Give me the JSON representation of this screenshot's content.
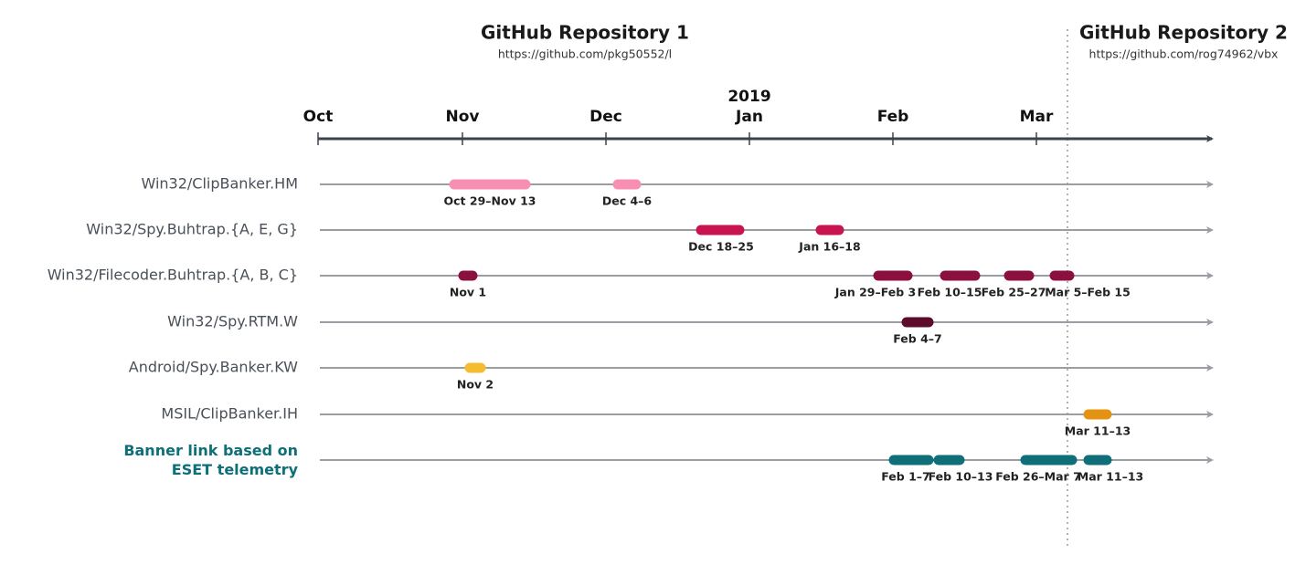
{
  "repositories": [
    {
      "title": "GitHub Repository 1",
      "url": "https://github.com/pkg50552/l"
    },
    {
      "title": "GitHub Repository 2",
      "url": "https://github.com/rog74962/vbx"
    }
  ],
  "axis": {
    "year": "2019",
    "months": [
      "Oct",
      "Nov",
      "Dec",
      "Jan",
      "Feb",
      "Mar"
    ]
  },
  "rows": [
    {
      "label": "Win32/ClipBanker.HM",
      "periods": [
        "Oct 29–Nov 13",
        "Dec 4–6"
      ]
    },
    {
      "label": "Win32/Spy.Buhtrap.{A, E, G}",
      "periods": [
        "Dec 18–25",
        "Jan 16–18"
      ]
    },
    {
      "label": "Win32/Filecoder.Buhtrap.{A, B, C}",
      "periods": [
        "Nov 1",
        "Jan 29–Feb 3",
        "Feb 10–15",
        "Feb 25–27",
        "Mar 5–Feb 15"
      ]
    },
    {
      "label": "Win32/Spy.RTM.W",
      "periods": [
        "Feb 4–7"
      ]
    },
    {
      "label": "Android/Spy.Banker.KW",
      "periods": [
        "Nov 2"
      ]
    },
    {
      "label": "MSIL/ClipBanker.IH",
      "periods": [
        "Mar 11–13"
      ]
    },
    {
      "label": [
        "Banner link based on",
        "ESET telemetry"
      ],
      "periods": [
        "Feb 1–7",
        "Feb 10–13",
        "Feb 26–Mar 7",
        "Mar 11–13"
      ]
    }
  ]
}
